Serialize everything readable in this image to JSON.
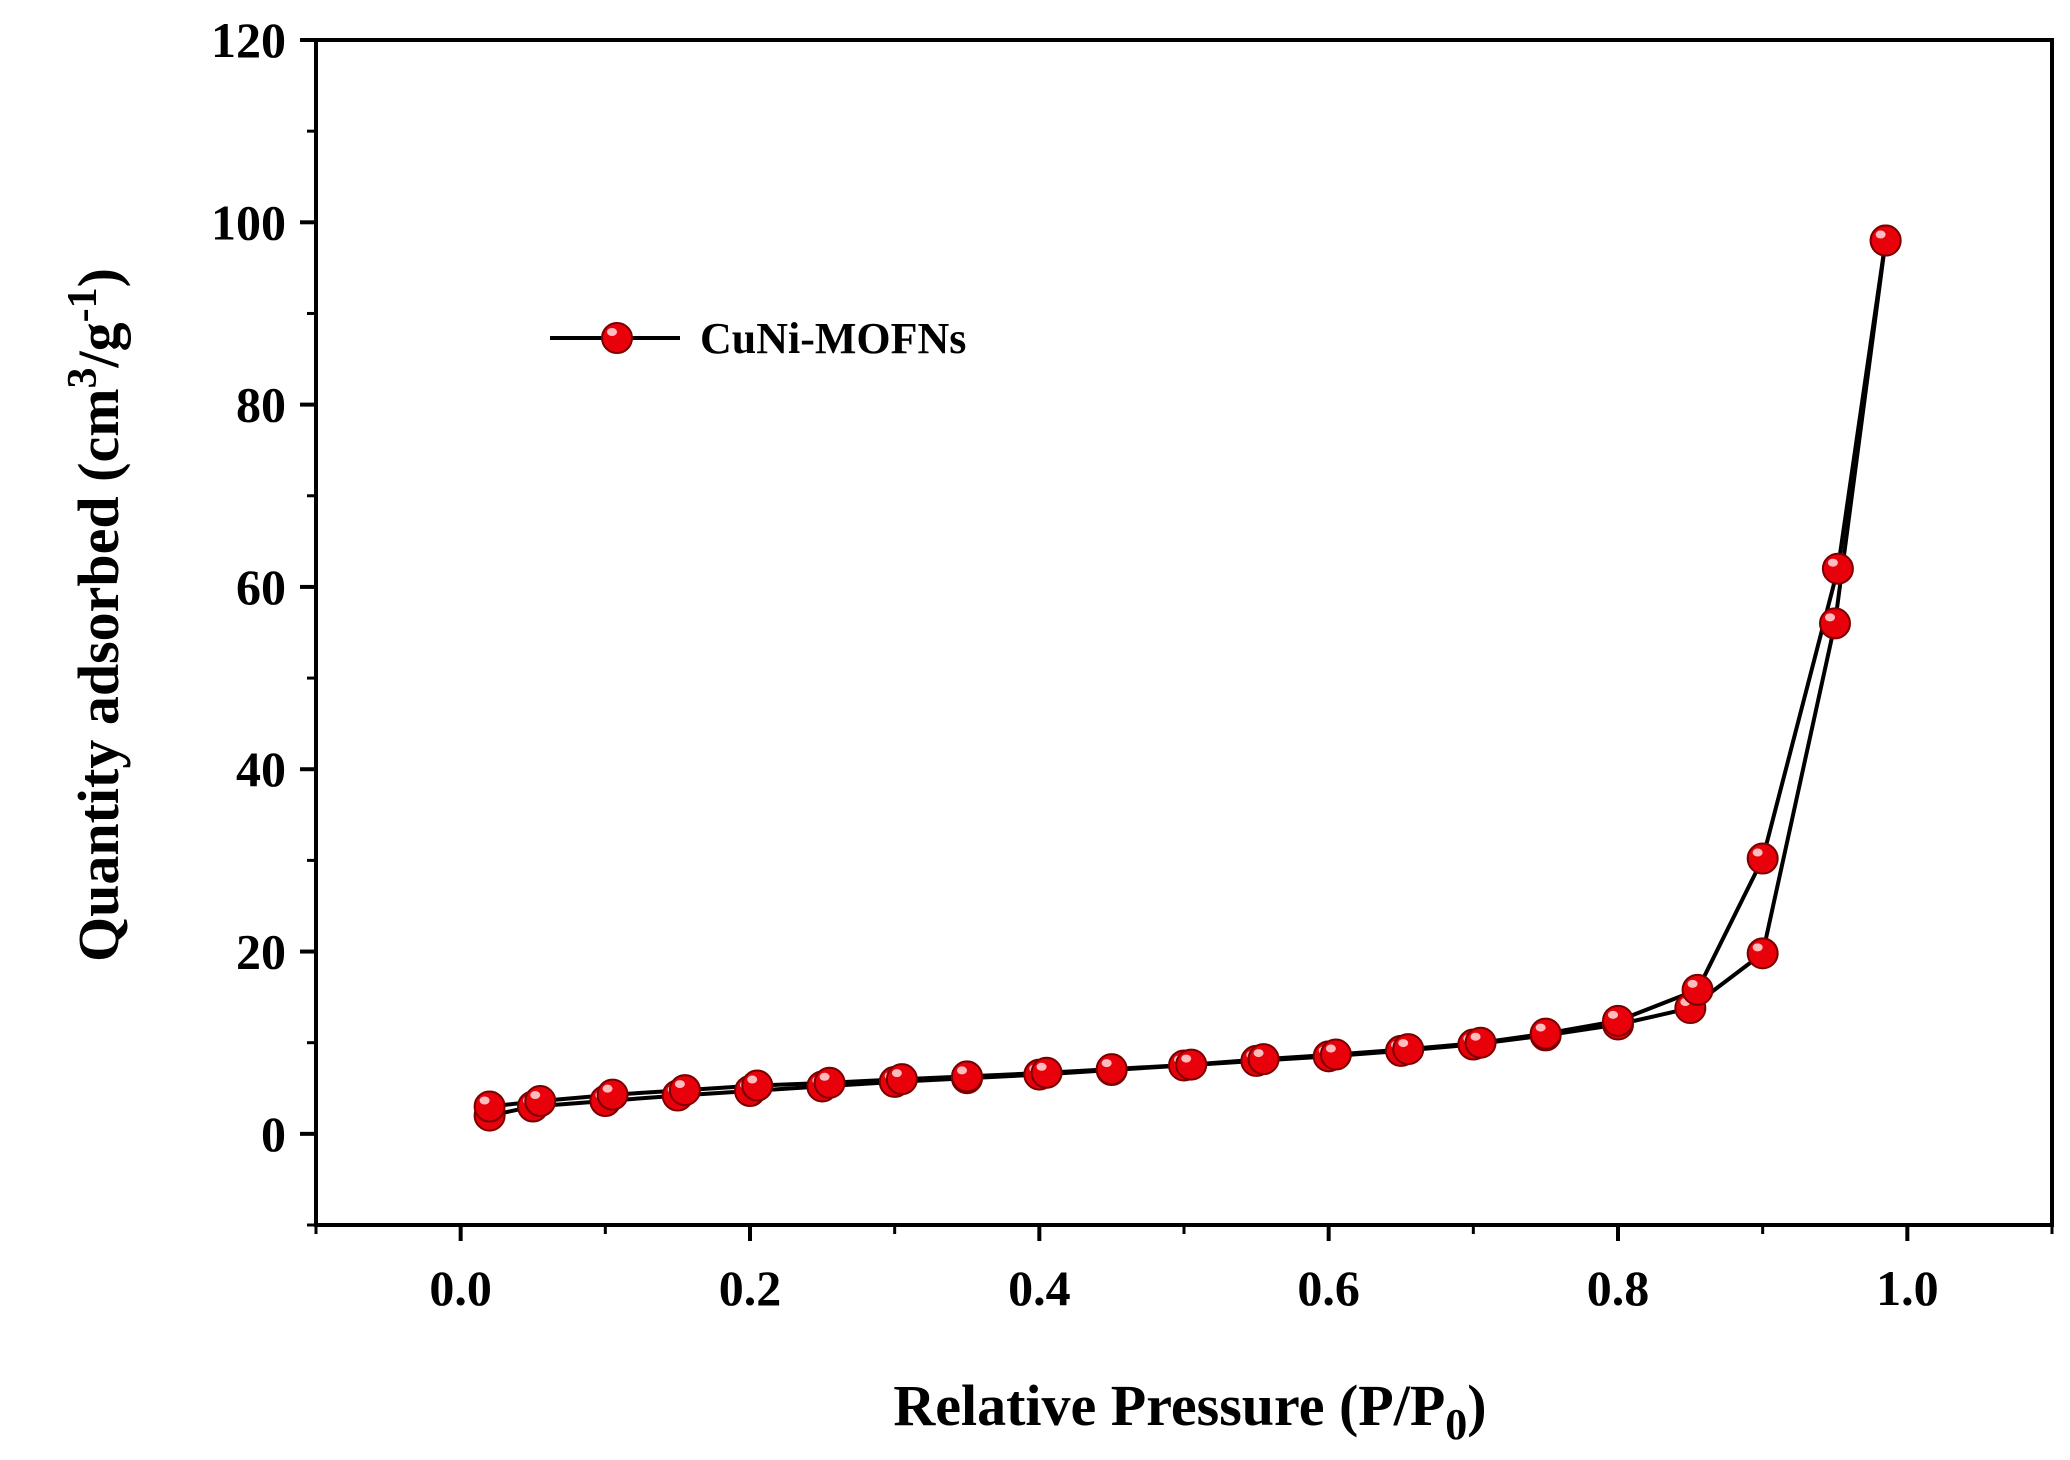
{
  "chart_data": {
    "type": "line",
    "xlabel": {
      "main": "Relative Pressure (P/P",
      "sub": "0",
      "tail": ")"
    },
    "ylabel": {
      "main": "Quantity adsorbed (cm",
      "sup1": "3",
      "mid": "/g",
      "sup2": "-1",
      "tail": ")"
    },
    "xlim": [
      -0.1,
      1.1
    ],
    "ylim": [
      -10,
      120
    ],
    "xticks": [
      0.0,
      0.2,
      0.4,
      0.6,
      0.8,
      1.0
    ],
    "xtick_labels": [
      "0.0",
      "0.2",
      "0.4",
      "0.6",
      "0.8",
      "1.0"
    ],
    "yticks": [
      0,
      20,
      40,
      60,
      80,
      100,
      120
    ],
    "ytick_labels": [
      "0",
      "20",
      "40",
      "60",
      "80",
      "100",
      "120"
    ],
    "legend_position": "upper-left",
    "series": [
      {
        "name": "CuNi-MOFNs",
        "line_color": "#000000",
        "marker_color": "#e8000b",
        "adsorption": {
          "x": [
            0.02,
            0.05,
            0.1,
            0.15,
            0.2,
            0.25,
            0.3,
            0.35,
            0.4,
            0.45,
            0.5,
            0.55,
            0.6,
            0.65,
            0.7,
            0.75,
            0.8,
            0.85,
            0.9,
            0.95,
            0.985
          ],
          "y": [
            2.0,
            3.0,
            3.6,
            4.2,
            4.7,
            5.2,
            5.7,
            6.1,
            6.5,
            7.0,
            7.5,
            8.0,
            8.5,
            9.1,
            9.8,
            10.8,
            12.0,
            13.8,
            19.8,
            56.0,
            98.0
          ]
        },
        "desorption": {
          "x": [
            0.985,
            0.952,
            0.9,
            0.855,
            0.8,
            0.75,
            0.705,
            0.655,
            0.605,
            0.555,
            0.505,
            0.45,
            0.405,
            0.35,
            0.305,
            0.255,
            0.205,
            0.155,
            0.105,
            0.055,
            0.02
          ],
          "y": [
            98.0,
            62.0,
            30.2,
            15.8,
            12.4,
            11.0,
            10.0,
            9.3,
            8.7,
            8.2,
            7.6,
            7.1,
            6.7,
            6.3,
            6.0,
            5.6,
            5.3,
            4.8,
            4.3,
            3.6,
            3.0
          ]
        }
      }
    ]
  }
}
